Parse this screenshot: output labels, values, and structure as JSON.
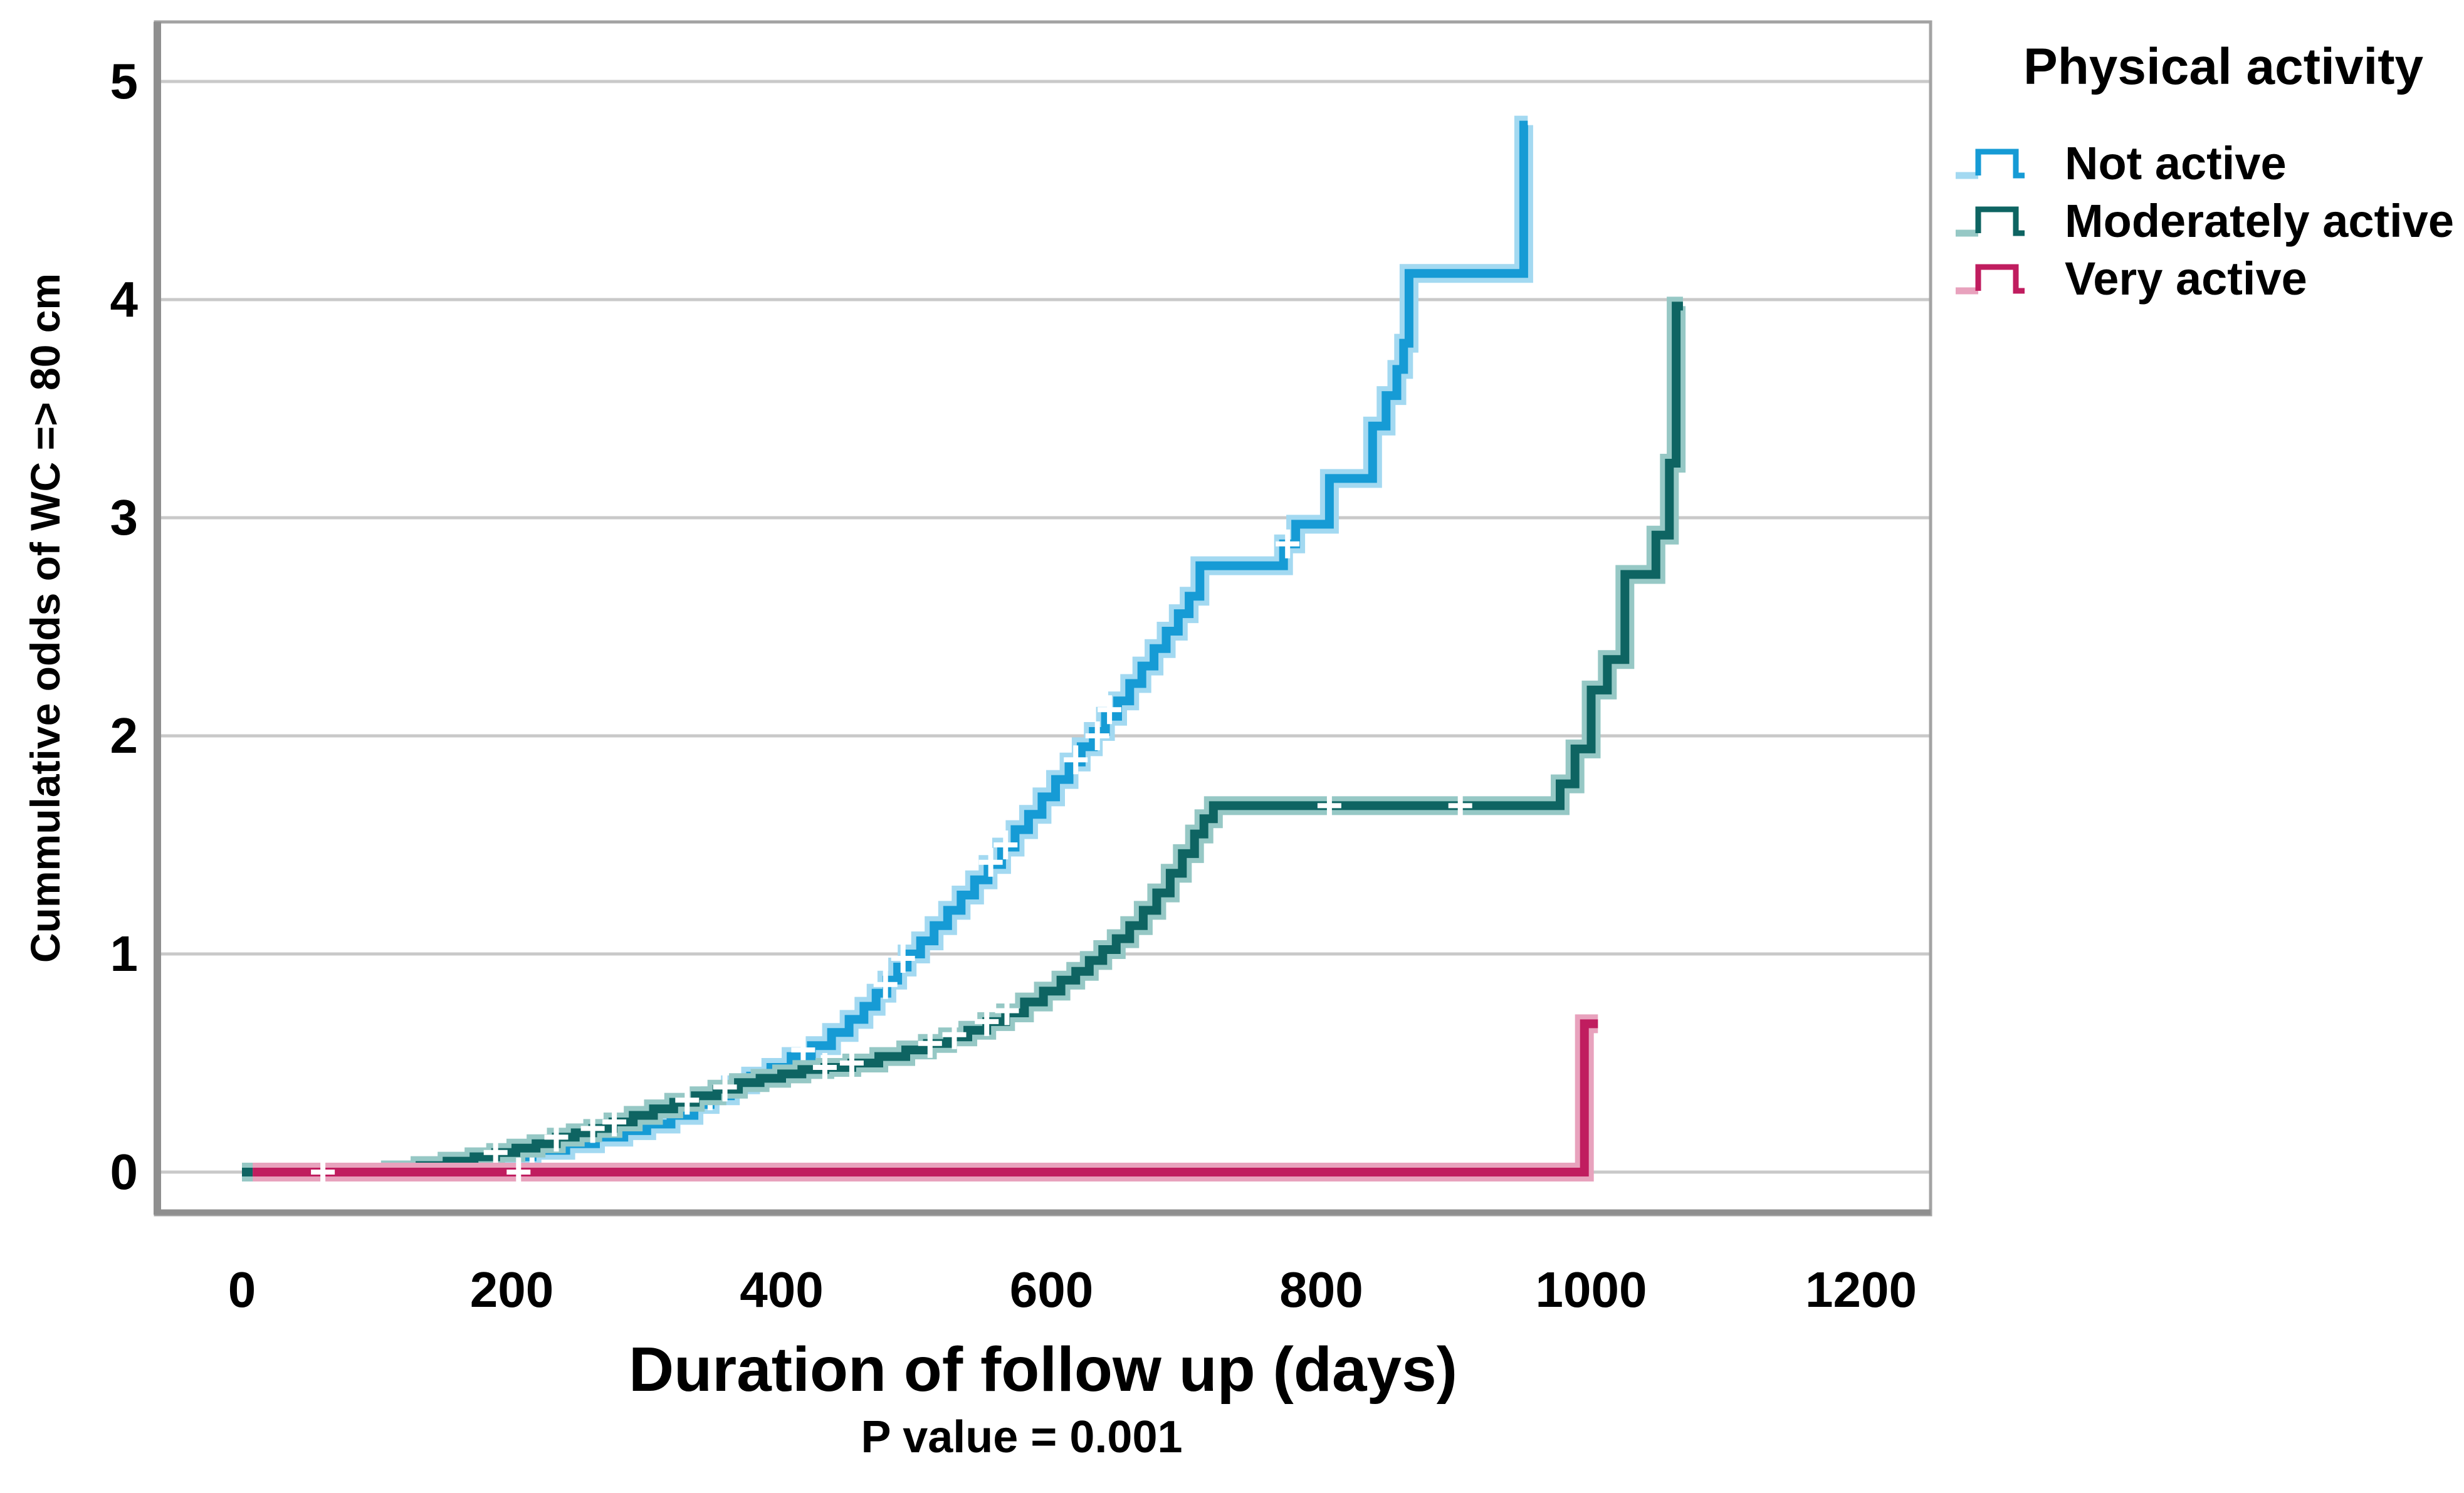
{
  "chart_data": {
    "type": "line",
    "subtype": "step-cumulative-hazard",
    "title": "",
    "xlabel": "Duration of follow up (days)",
    "ylabel": "Cummulative odds of WC => 80 cm",
    "note": "P value = 0.001",
    "legend_title": "Physical activity",
    "legend_position": "top-right",
    "grid": "horizontal",
    "x_ticks": [
      0,
      200,
      400,
      600,
      800,
      1000,
      1200
    ],
    "y_ticks": [
      0,
      1,
      2,
      3,
      4,
      5
    ],
    "xlim": [
      -64,
      1252
    ],
    "ylim": [
      -0.2,
      5.27
    ],
    "colors": {
      "grid": "#c9c9c9",
      "frame": "#a3a3a3",
      "frame_accent": "#8f8f8f",
      "censor_mark": "#ffffff",
      "text": "#000000"
    },
    "series": [
      {
        "name": "Not active",
        "color": "#169bd5",
        "halo": "#a3d9f1",
        "steps": [
          [
            0,
            0
          ],
          [
            150,
            0.02
          ],
          [
            170,
            0.04
          ],
          [
            190,
            0.07
          ],
          [
            215,
            0.1
          ],
          [
            240,
            0.13
          ],
          [
            262,
            0.16
          ],
          [
            283,
            0.19
          ],
          [
            300,
            0.22
          ],
          [
            318,
            0.26
          ],
          [
            335,
            0.31
          ],
          [
            347,
            0.35
          ],
          [
            362,
            0.4
          ],
          [
            377,
            0.44
          ],
          [
            392,
            0.48
          ],
          [
            407,
            0.53
          ],
          [
            422,
            0.58
          ],
          [
            437,
            0.64
          ],
          [
            450,
            0.7
          ],
          [
            461,
            0.76
          ],
          [
            470,
            0.82
          ],
          [
            478,
            0.88
          ],
          [
            486,
            0.94
          ],
          [
            493,
            1.0
          ],
          [
            503,
            1.06
          ],
          [
            513,
            1.13
          ],
          [
            523,
            1.2
          ],
          [
            533,
            1.27
          ],
          [
            543,
            1.34
          ],
          [
            553,
            1.41
          ],
          [
            563,
            1.49
          ],
          [
            573,
            1.57
          ],
          [
            583,
            1.64
          ],
          [
            593,
            1.72
          ],
          [
            603,
            1.8
          ],
          [
            613,
            1.88
          ],
          [
            622,
            1.95
          ],
          [
            631,
            2.02
          ],
          [
            640,
            2.09
          ],
          [
            649,
            2.16
          ],
          [
            658,
            2.24
          ],
          [
            667,
            2.32
          ],
          [
            676,
            2.4
          ],
          [
            685,
            2.48
          ],
          [
            694,
            2.56
          ],
          [
            702,
            2.64
          ],
          [
            710,
            2.78
          ],
          [
            772,
            2.88
          ],
          [
            781,
            2.97
          ],
          [
            806,
            3.18
          ],
          [
            838,
            3.42
          ],
          [
            848,
            3.56
          ],
          [
            856,
            3.68
          ],
          [
            861,
            3.8
          ],
          [
            865,
            4.12
          ],
          [
            950,
            4.8
          ],
          [
            953,
            4.8
          ]
        ],
        "censors": [
          [
            215,
            0.1
          ],
          [
            347,
            0.35
          ],
          [
            416,
            0.56
          ],
          [
            477,
            0.86
          ],
          [
            490,
            0.98
          ],
          [
            555,
            1.42
          ],
          [
            566,
            1.5
          ],
          [
            618,
            1.89
          ],
          [
            634,
            2.0
          ],
          [
            643,
            2.12
          ],
          [
            775,
            2.88
          ]
        ]
      },
      {
        "name": "Moderately active",
        "color": "#0e6462",
        "halo": "#96c8c5",
        "steps": [
          [
            0,
            0
          ],
          [
            110,
            0.01
          ],
          [
            132,
            0.03
          ],
          [
            152,
            0.05
          ],
          [
            172,
            0.07
          ],
          [
            188,
            0.09
          ],
          [
            203,
            0.11
          ],
          [
            218,
            0.13
          ],
          [
            233,
            0.16
          ],
          [
            247,
            0.18
          ],
          [
            260,
            0.2
          ],
          [
            275,
            0.23
          ],
          [
            290,
            0.26
          ],
          [
            305,
            0.29
          ],
          [
            320,
            0.32
          ],
          [
            336,
            0.35
          ],
          [
            352,
            0.38
          ],
          [
            368,
            0.41
          ],
          [
            384,
            0.43
          ],
          [
            400,
            0.45
          ],
          [
            415,
            0.47
          ],
          [
            432,
            0.48
          ],
          [
            452,
            0.5
          ],
          [
            472,
            0.53
          ],
          [
            492,
            0.56
          ],
          [
            508,
            0.59
          ],
          [
            523,
            0.62
          ],
          [
            538,
            0.65
          ],
          [
            552,
            0.69
          ],
          [
            566,
            0.73
          ],
          [
            580,
            0.78
          ],
          [
            594,
            0.83
          ],
          [
            607,
            0.88
          ],
          [
            618,
            0.92
          ],
          [
            628,
            0.97
          ],
          [
            638,
            1.02
          ],
          [
            648,
            1.07
          ],
          [
            658,
            1.13
          ],
          [
            668,
            1.2
          ],
          [
            678,
            1.28
          ],
          [
            688,
            1.37
          ],
          [
            697,
            1.46
          ],
          [
            706,
            1.55
          ],
          [
            713,
            1.62
          ],
          [
            720,
            1.68
          ],
          [
            977,
            1.78
          ],
          [
            988,
            1.94
          ],
          [
            1000,
            2.21
          ],
          [
            1012,
            2.35
          ],
          [
            1025,
            2.74
          ],
          [
            1048,
            2.92
          ],
          [
            1058,
            3.25
          ],
          [
            1063,
            3.97
          ],
          [
            1068,
            3.97
          ]
        ],
        "censors": [
          [
            188,
            0.09
          ],
          [
            233,
            0.16
          ],
          [
            260,
            0.2
          ],
          [
            276,
            0.23
          ],
          [
            330,
            0.33
          ],
          [
            358,
            0.39
          ],
          [
            432,
            0.48
          ],
          [
            452,
            0.5
          ],
          [
            510,
            0.59
          ],
          [
            528,
            0.63
          ],
          [
            552,
            0.69
          ],
          [
            567,
            0.74
          ],
          [
            806,
            1.68
          ],
          [
            903,
            1.68
          ]
        ]
      },
      {
        "name": "Very active",
        "color": "#c01d5f",
        "halo": "#e8a2bd",
        "steps": [
          [
            8,
            0
          ],
          [
            995,
            0.68
          ],
          [
            1005,
            0.68
          ]
        ],
        "censors": [
          [
            60,
            0
          ],
          [
            205,
            0
          ]
        ]
      }
    ]
  }
}
